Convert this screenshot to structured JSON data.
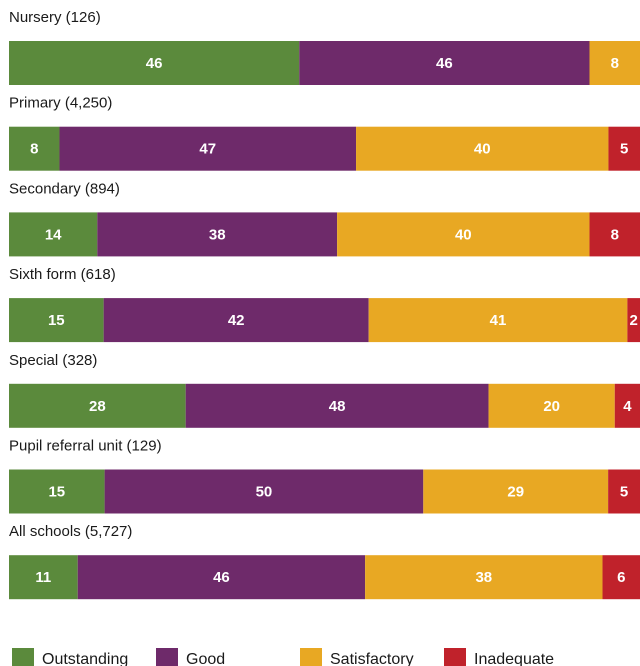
{
  "chart_data": {
    "type": "bar",
    "orientation": "horizontal",
    "stacked": true,
    "percent_stacked": true,
    "categories": [
      "Nursery (126)",
      "Primary (4,250)",
      "Secondary (894)",
      "Sixth form (618)",
      "Special (328)",
      "Pupil referral unit (129)",
      "All schools (5,727)"
    ],
    "series": [
      {
        "name": "Outstanding",
        "color": "#5b8a3c",
        "values": [
          46,
          8,
          14,
          15,
          28,
          15,
          11
        ]
      },
      {
        "name": "Good",
        "color": "#6e2a6a",
        "values": [
          46,
          47,
          38,
          42,
          48,
          50,
          46
        ]
      },
      {
        "name": "Satisfactory",
        "color": "#e8a823",
        "values": [
          8,
          40,
          40,
          41,
          20,
          29,
          38
        ]
      },
      {
        "name": "Inadequate",
        "color": "#c0222b",
        "values": [
          0,
          5,
          8,
          2,
          4,
          5,
          6
        ]
      }
    ],
    "legend_position": "bottom",
    "grid": false,
    "axis_labels_shown": false
  }
}
